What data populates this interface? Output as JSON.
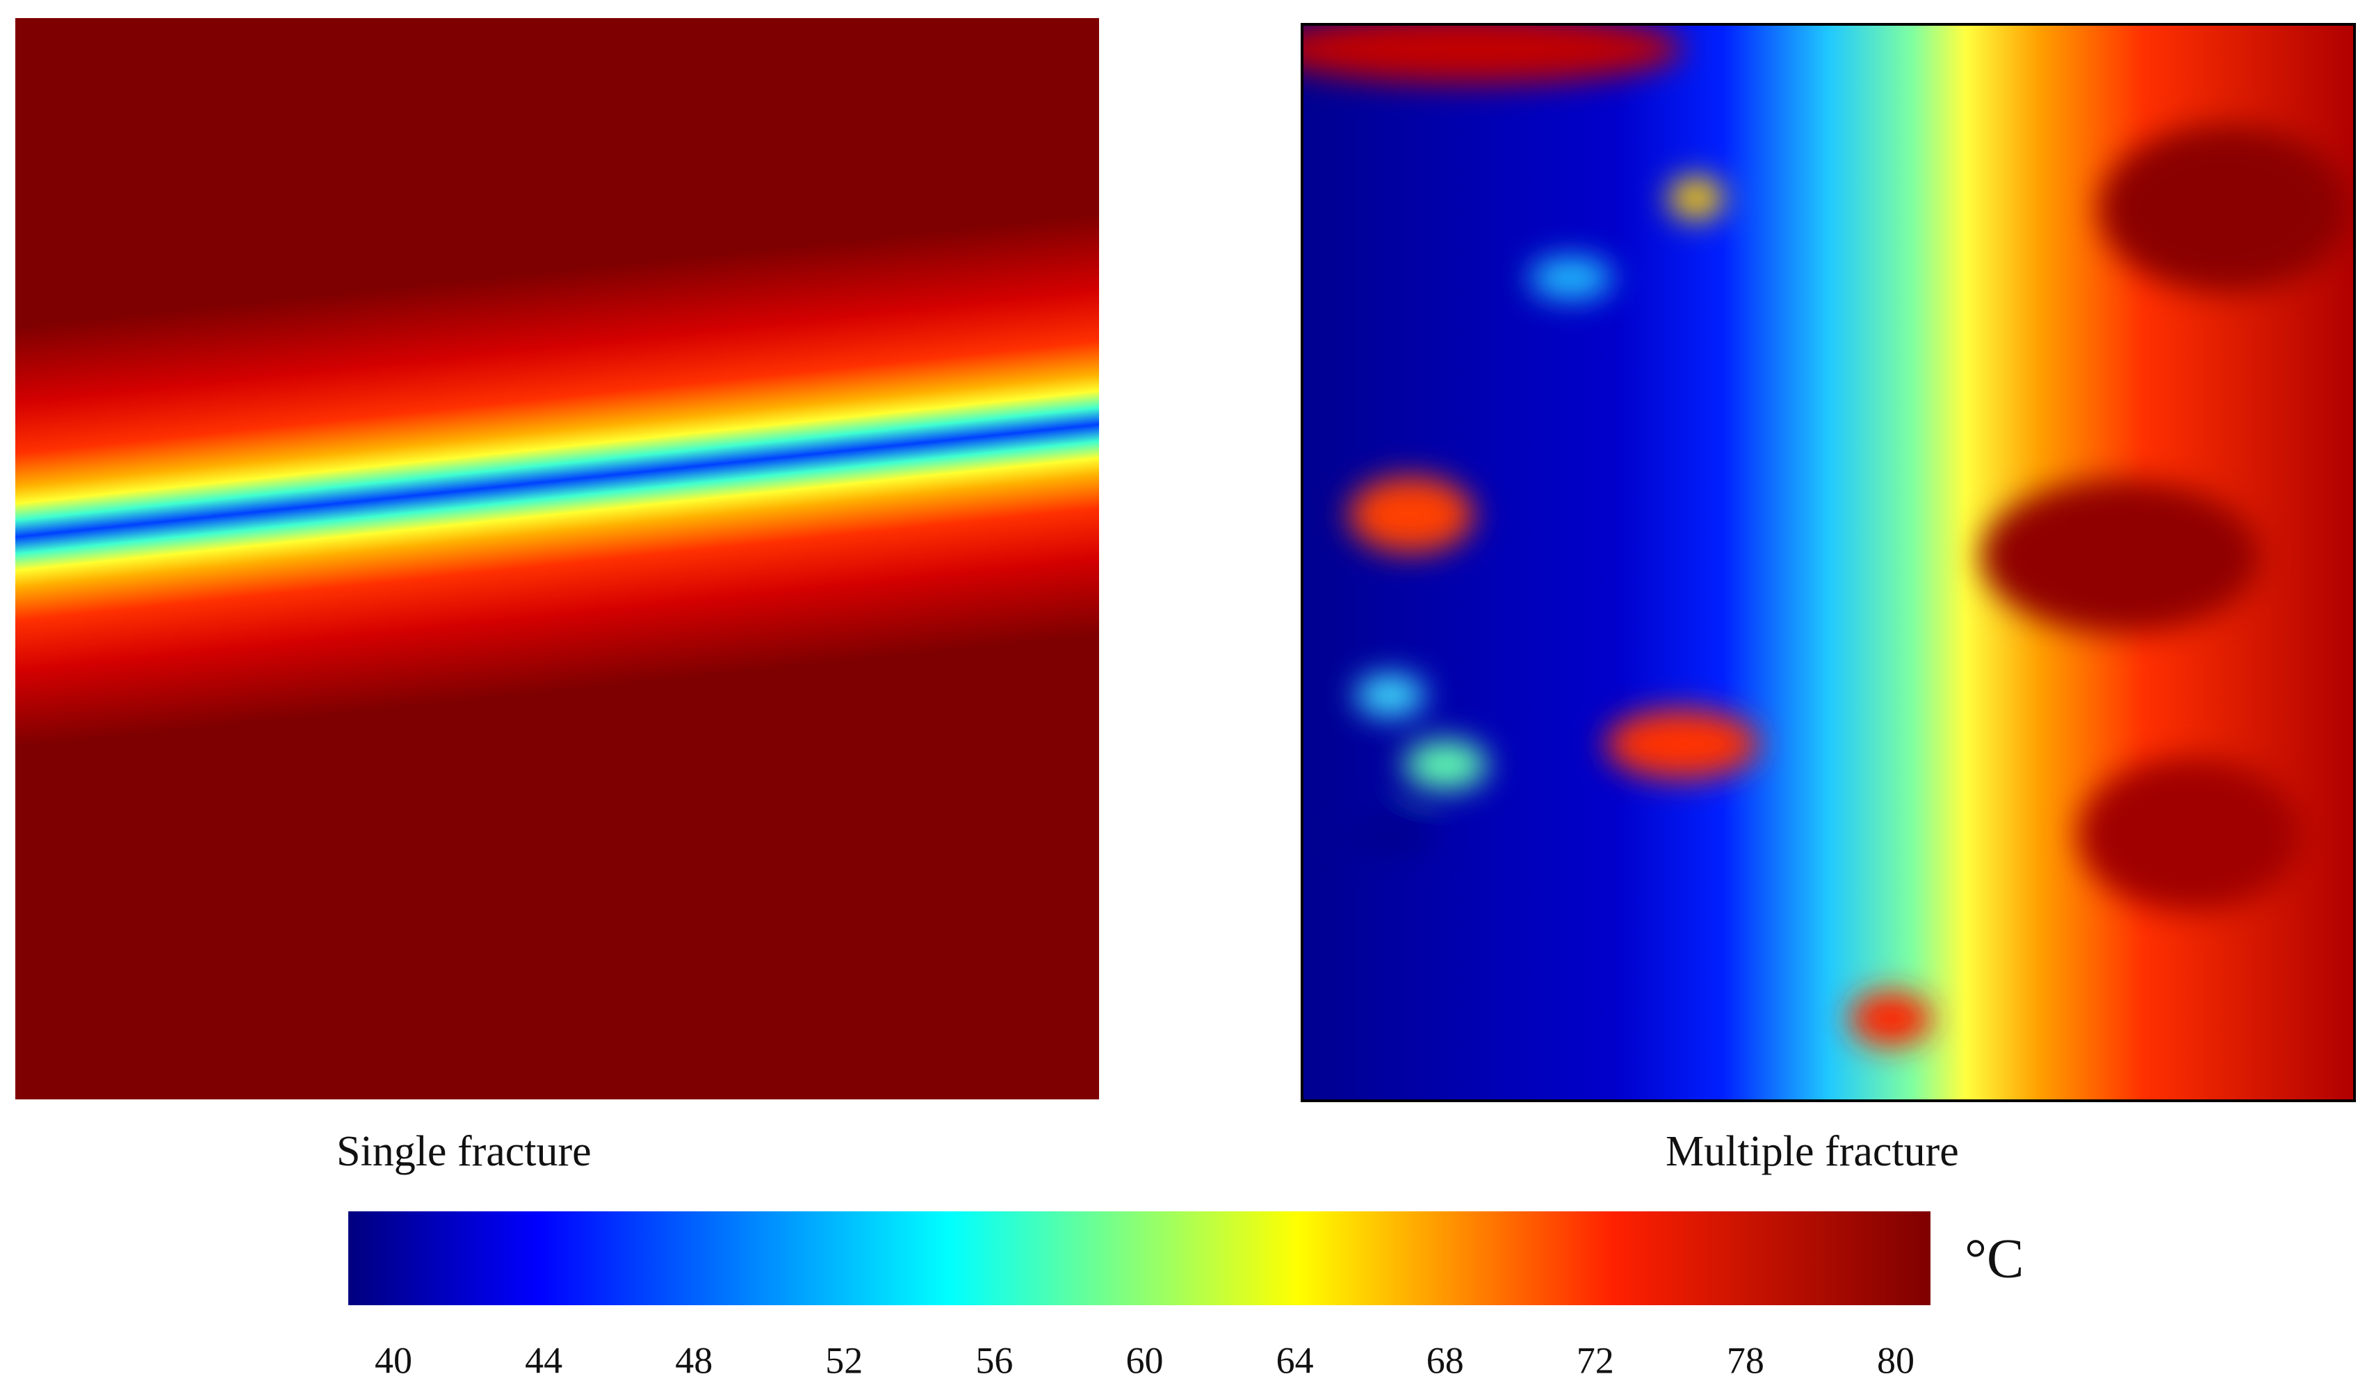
{
  "panels": [
    {
      "caption": "Single fracture"
    },
    {
      "caption": "Multiple fracture"
    }
  ],
  "colorbar": {
    "unit": "°C",
    "ticks": [
      40,
      44,
      48,
      52,
      56,
      60,
      64,
      68,
      72,
      78,
      80
    ]
  }
}
